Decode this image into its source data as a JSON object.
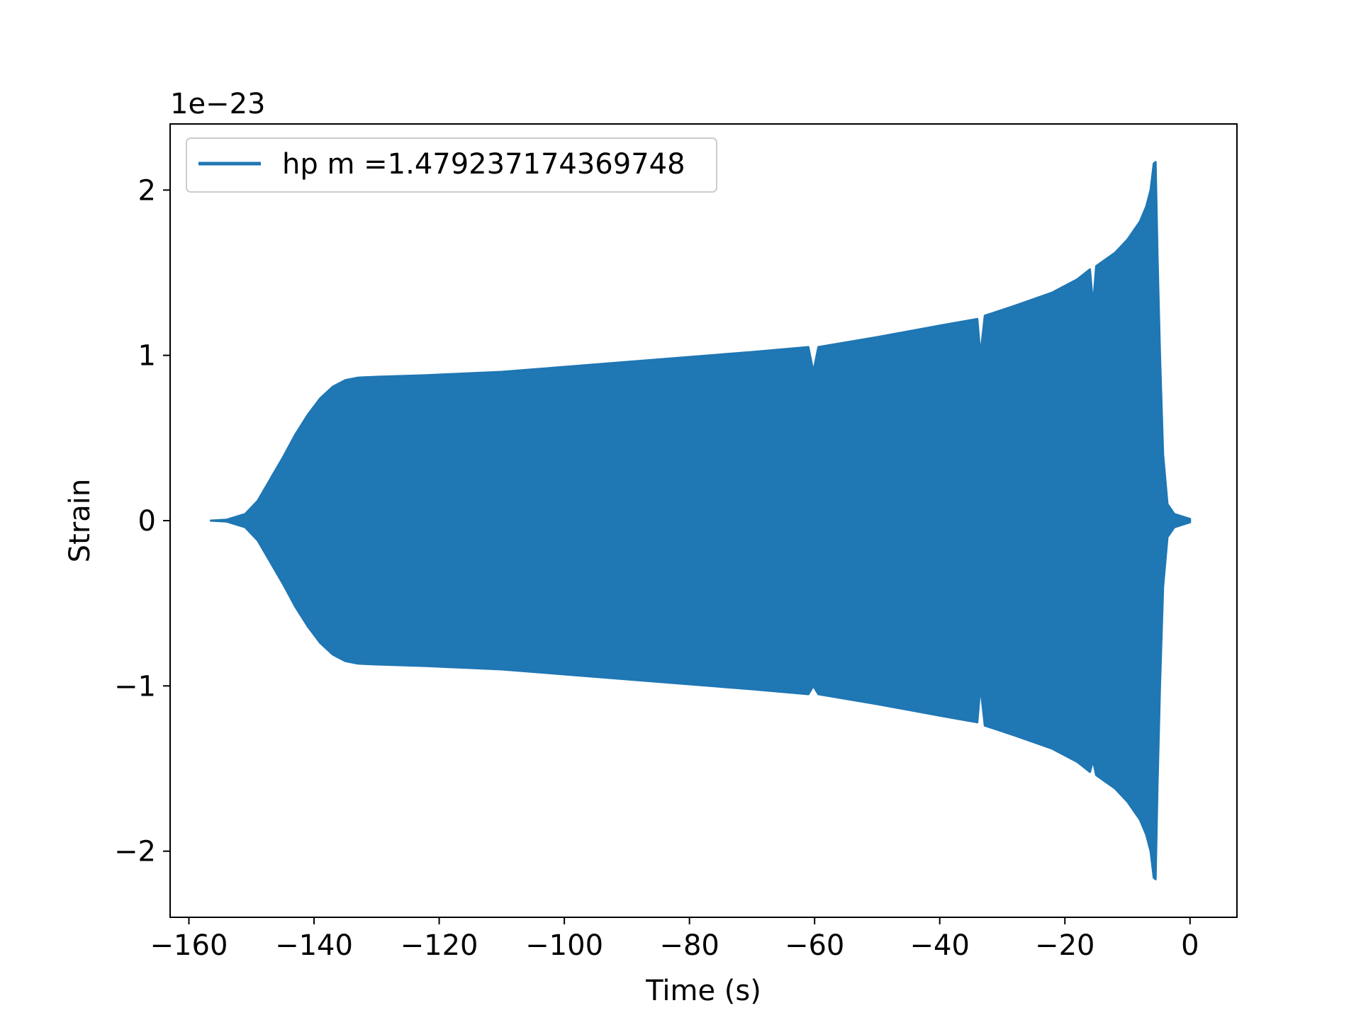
{
  "chart_data": {
    "type": "line",
    "title": "",
    "xlabel": "Time (s)",
    "ylabel": "Strain",
    "y_offset_label": "1e−23",
    "xlim": [
      -163,
      7.5
    ],
    "ylim": [
      -2.4,
      2.4
    ],
    "x_ticks": [
      -160,
      -140,
      -120,
      -100,
      -80,
      -60,
      -40,
      -20,
      0
    ],
    "x_tick_labels": [
      "−160",
      "−140",
      "−120",
      "−100",
      "−80",
      "−60",
      "−40",
      "−20",
      "0"
    ],
    "y_ticks": [
      -2,
      -1,
      0,
      1,
      2
    ],
    "y_tick_labels": [
      "−2",
      "−1",
      "0",
      "1",
      "2"
    ],
    "grid": false,
    "legend": {
      "position": "top-left",
      "entries": [
        "hp m =1.479237174369748"
      ]
    },
    "series": [
      {
        "name": "hp m =1.479237174369748",
        "color": "#1f77b4",
        "upper_envelope": [
          [
            -156.5,
            0.0
          ],
          [
            -154,
            0.005
          ],
          [
            -151,
            0.04
          ],
          [
            -149,
            0.12
          ],
          [
            -147,
            0.25
          ],
          [
            -145,
            0.38
          ],
          [
            -143,
            0.52
          ],
          [
            -141,
            0.64
          ],
          [
            -139,
            0.74
          ],
          [
            -137,
            0.81
          ],
          [
            -135,
            0.85
          ],
          [
            -133,
            0.865
          ],
          [
            -130,
            0.87
          ],
          [
            -122,
            0.88
          ],
          [
            -110,
            0.9
          ],
          [
            -100,
            0.93
          ],
          [
            -90,
            0.96
          ],
          [
            -80,
            0.99
          ],
          [
            -70,
            1.02
          ],
          [
            -61,
            1.05
          ],
          [
            -60.2,
            0.9
          ],
          [
            -59.4,
            1.05
          ],
          [
            -50,
            1.11
          ],
          [
            -40,
            1.18
          ],
          [
            -34,
            1.22
          ],
          [
            -33.5,
            1.0
          ],
          [
            -32.8,
            1.24
          ],
          [
            -28,
            1.3
          ],
          [
            -22,
            1.38
          ],
          [
            -18,
            1.46
          ],
          [
            -16,
            1.52
          ],
          [
            -15.5,
            1.3
          ],
          [
            -15,
            1.54
          ],
          [
            -12,
            1.62
          ],
          [
            -10,
            1.7
          ],
          [
            -8,
            1.81
          ],
          [
            -7,
            1.9
          ],
          [
            -6.3,
            2.0
          ],
          [
            -5.8,
            2.16
          ],
          [
            -5.5,
            2.17
          ],
          [
            -5.2,
            1.6
          ],
          [
            -4.8,
            1.0
          ],
          [
            -4.3,
            0.4
          ],
          [
            -3.6,
            0.1
          ],
          [
            -2.5,
            0.04
          ],
          [
            0,
            0.01
          ]
        ],
        "lower_envelope": [
          [
            -156.5,
            0.0
          ],
          [
            -154,
            -0.005
          ],
          [
            -151,
            -0.04
          ],
          [
            -149,
            -0.12
          ],
          [
            -147,
            -0.25
          ],
          [
            -145,
            -0.38
          ],
          [
            -143,
            -0.52
          ],
          [
            -141,
            -0.64
          ],
          [
            -139,
            -0.74
          ],
          [
            -137,
            -0.81
          ],
          [
            -135,
            -0.85
          ],
          [
            -133,
            -0.865
          ],
          [
            -130,
            -0.87
          ],
          [
            -122,
            -0.88
          ],
          [
            -110,
            -0.9
          ],
          [
            -100,
            -0.93
          ],
          [
            -90,
            -0.96
          ],
          [
            -80,
            -0.99
          ],
          [
            -70,
            -1.02
          ],
          [
            -61,
            -1.05
          ],
          [
            -60.2,
            -1.0
          ],
          [
            -59.4,
            -1.05
          ],
          [
            -50,
            -1.11
          ],
          [
            -40,
            -1.18
          ],
          [
            -34,
            -1.22
          ],
          [
            -33.5,
            -1.0
          ],
          [
            -32.8,
            -1.24
          ],
          [
            -28,
            -1.3
          ],
          [
            -22,
            -1.38
          ],
          [
            -18,
            -1.46
          ],
          [
            -16,
            -1.52
          ],
          [
            -15.5,
            -1.45
          ],
          [
            -15,
            -1.54
          ],
          [
            -12,
            -1.62
          ],
          [
            -10,
            -1.7
          ],
          [
            -8,
            -1.81
          ],
          [
            -7,
            -1.9
          ],
          [
            -6.3,
            -2.0
          ],
          [
            -5.8,
            -2.16
          ],
          [
            -5.5,
            -2.17
          ],
          [
            -5.2,
            -1.6
          ],
          [
            -4.8,
            -1.0
          ],
          [
            -4.3,
            -0.4
          ],
          [
            -3.6,
            -0.1
          ],
          [
            -2.5,
            -0.04
          ],
          [
            0,
            -0.01
          ]
        ]
      }
    ]
  }
}
